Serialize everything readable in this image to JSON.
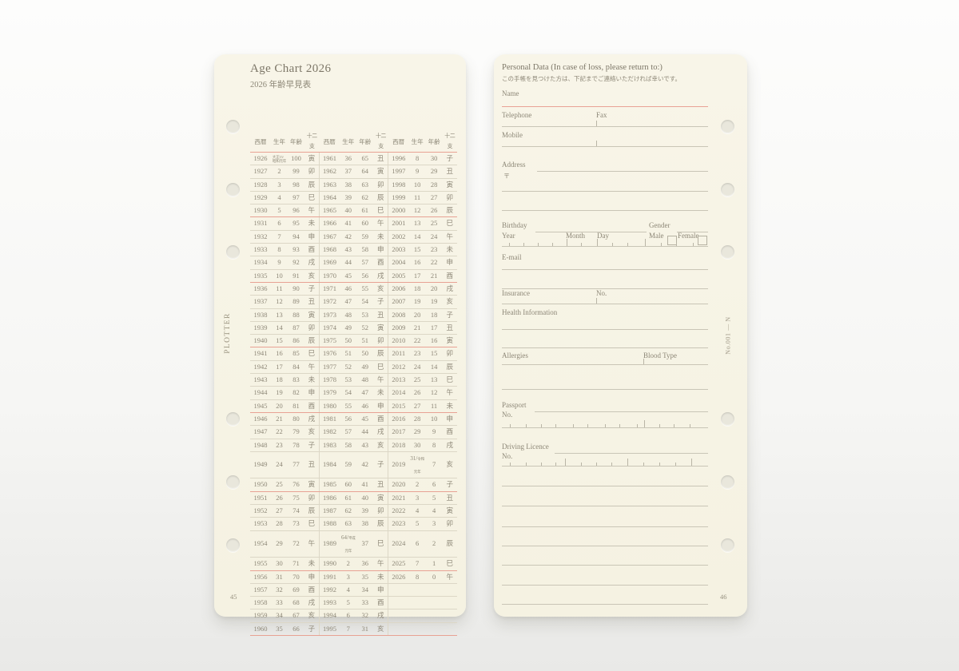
{
  "colors": {
    "paper": "#f8f5e8",
    "ink": "#8d8777",
    "accent": "#e8a294",
    "rule": "#c9c5b6"
  },
  "left_page": {
    "title": "Age Chart 2026",
    "subtitle": "2026 年齢早見表",
    "brand": "PLOTTER",
    "page_number": "45",
    "table": {
      "column_headers": [
        "西暦",
        "生年",
        "年齢",
        "十二支"
      ],
      "group_count": 3,
      "rows": [
        [
          "1926",
          "大正15/昭和元年",
          "100",
          "寅",
          "1961",
          "36",
          "65",
          "丑",
          "1996",
          "8",
          "30",
          "子"
        ],
        [
          "1927",
          "2",
          "99",
          "卯",
          "1962",
          "37",
          "64",
          "寅",
          "1997",
          "9",
          "29",
          "丑"
        ],
        [
          "1928",
          "3",
          "98",
          "辰",
          "1963",
          "38",
          "63",
          "卯",
          "1998",
          "10",
          "28",
          "寅"
        ],
        [
          "1929",
          "4",
          "97",
          "巳",
          "1964",
          "39",
          "62",
          "辰",
          "1999",
          "11",
          "27",
          "卯"
        ],
        [
          "1930",
          "5",
          "96",
          "午",
          "1965",
          "40",
          "61",
          "巳",
          "2000",
          "12",
          "26",
          "辰"
        ],
        [
          "1931",
          "6",
          "95",
          "未",
          "1966",
          "41",
          "60",
          "午",
          "2001",
          "13",
          "25",
          "巳"
        ],
        [
          "1932",
          "7",
          "94",
          "申",
          "1967",
          "42",
          "59",
          "未",
          "2002",
          "14",
          "24",
          "午"
        ],
        [
          "1933",
          "8",
          "93",
          "酉",
          "1968",
          "43",
          "58",
          "申",
          "2003",
          "15",
          "23",
          "未"
        ],
        [
          "1934",
          "9",
          "92",
          "戌",
          "1969",
          "44",
          "57",
          "酉",
          "2004",
          "16",
          "22",
          "申"
        ],
        [
          "1935",
          "10",
          "91",
          "亥",
          "1970",
          "45",
          "56",
          "戌",
          "2005",
          "17",
          "21",
          "酉"
        ],
        [
          "1936",
          "11",
          "90",
          "子",
          "1971",
          "46",
          "55",
          "亥",
          "2006",
          "18",
          "20",
          "戌"
        ],
        [
          "1937",
          "12",
          "89",
          "丑",
          "1972",
          "47",
          "54",
          "子",
          "2007",
          "19",
          "19",
          "亥"
        ],
        [
          "1938",
          "13",
          "88",
          "寅",
          "1973",
          "48",
          "53",
          "丑",
          "2008",
          "20",
          "18",
          "子"
        ],
        [
          "1939",
          "14",
          "87",
          "卯",
          "1974",
          "49",
          "52",
          "寅",
          "2009",
          "21",
          "17",
          "丑"
        ],
        [
          "1940",
          "15",
          "86",
          "辰",
          "1975",
          "50",
          "51",
          "卯",
          "2010",
          "22",
          "16",
          "寅"
        ],
        [
          "1941",
          "16",
          "85",
          "巳",
          "1976",
          "51",
          "50",
          "辰",
          "2011",
          "23",
          "15",
          "卯"
        ],
        [
          "1942",
          "17",
          "84",
          "午",
          "1977",
          "52",
          "49",
          "巳",
          "2012",
          "24",
          "14",
          "辰"
        ],
        [
          "1943",
          "18",
          "83",
          "未",
          "1978",
          "53",
          "48",
          "午",
          "2013",
          "25",
          "13",
          "巳"
        ],
        [
          "1944",
          "19",
          "82",
          "申",
          "1979",
          "54",
          "47",
          "未",
          "2014",
          "26",
          "12",
          "午"
        ],
        [
          "1945",
          "20",
          "81",
          "酉",
          "1980",
          "55",
          "46",
          "申",
          "2015",
          "27",
          "11",
          "未"
        ],
        [
          "1946",
          "21",
          "80",
          "戌",
          "1981",
          "56",
          "45",
          "酉",
          "2016",
          "28",
          "10",
          "申"
        ],
        [
          "1947",
          "22",
          "79",
          "亥",
          "1982",
          "57",
          "44",
          "戌",
          "2017",
          "29",
          "9",
          "酉"
        ],
        [
          "1948",
          "23",
          "78",
          "子",
          "1983",
          "58",
          "43",
          "亥",
          "2018",
          "30",
          "8",
          "戌"
        ],
        [
          "1949",
          "24",
          "77",
          "丑",
          "1984",
          "59",
          "42",
          "子",
          "2019",
          "31/令和元年",
          "7",
          "亥"
        ],
        [
          "1950",
          "25",
          "76",
          "寅",
          "1985",
          "60",
          "41",
          "丑",
          "2020",
          "2",
          "6",
          "子"
        ],
        [
          "1951",
          "26",
          "75",
          "卯",
          "1986",
          "61",
          "40",
          "寅",
          "2021",
          "3",
          "5",
          "丑"
        ],
        [
          "1952",
          "27",
          "74",
          "辰",
          "1987",
          "62",
          "39",
          "卯",
          "2022",
          "4",
          "4",
          "寅"
        ],
        [
          "1953",
          "28",
          "73",
          "巳",
          "1988",
          "63",
          "38",
          "辰",
          "2023",
          "5",
          "3",
          "卯"
        ],
        [
          "1954",
          "29",
          "72",
          "午",
          "1989",
          "64/平成元年",
          "37",
          "巳",
          "2024",
          "6",
          "2",
          "辰"
        ],
        [
          "1955",
          "30",
          "71",
          "未",
          "1990",
          "2",
          "36",
          "午",
          "2025",
          "7",
          "1",
          "巳"
        ],
        [
          "1956",
          "31",
          "70",
          "申",
          "1991",
          "3",
          "35",
          "未",
          "2026",
          "8",
          "0",
          "午"
        ],
        [
          "1957",
          "32",
          "69",
          "酉",
          "1992",
          "4",
          "34",
          "申",
          "",
          "",
          "",
          ""
        ],
        [
          "1958",
          "33",
          "68",
          "戌",
          "1993",
          "5",
          "33",
          "酉",
          "",
          "",
          "",
          ""
        ],
        [
          "1959",
          "34",
          "67",
          "亥",
          "1994",
          "6",
          "32",
          "戌",
          "",
          "",
          "",
          ""
        ],
        [
          "1960",
          "35",
          "66",
          "子",
          "1995",
          "7",
          "31",
          "亥",
          "",
          "",
          "",
          ""
        ]
      ]
    }
  },
  "right_page": {
    "refill_code": "No.001 — N",
    "page_number": "46",
    "header": "Personal Data (In case of loss, please return to:)",
    "note_jp": "この手帳を見つけた方は、下記までご連絡いただければ幸いです。",
    "labels": {
      "name": "Name",
      "telephone": "Telephone",
      "fax": "Fax",
      "mobile": "Mobile",
      "address": "Address",
      "postal_mark": "〒",
      "birthday": "Birthday",
      "year": "Year",
      "month": "Month",
      "day": "Day",
      "gender": "Gender",
      "male": "Male",
      "female": "Female",
      "email": "E-mail",
      "insurance": "Insurance",
      "no": "No.",
      "health_information": "Health Information",
      "allergies": "Allergies",
      "blood_type": "Blood Type",
      "passport": "Passport",
      "driving_licence": "Driving Licence"
    }
  }
}
